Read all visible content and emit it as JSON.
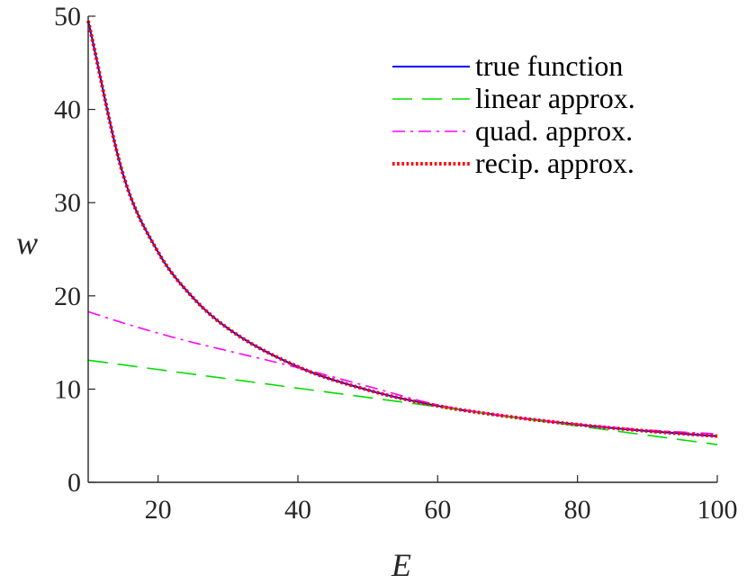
{
  "chart_data": {
    "type": "line",
    "title": "",
    "xlabel": "E",
    "ylabel": "w",
    "xlim": [
      10,
      100
    ],
    "ylim": [
      0,
      50
    ],
    "xticks": [
      20,
      40,
      60,
      80,
      100
    ],
    "yticks": [
      0,
      10,
      20,
      30,
      40,
      50
    ],
    "xtick_labels": [
      "20",
      "40",
      "60",
      "80",
      "100"
    ],
    "ytick_labels": [
      "0",
      "10",
      "20",
      "30",
      "40",
      "50"
    ],
    "grid": false,
    "legend_position": "top-right",
    "x_samples": [
      10,
      15,
      20,
      25,
      30,
      40,
      50,
      60,
      70,
      80,
      90,
      100
    ],
    "series": [
      {
        "name": "true function",
        "color": "#0000ff",
        "style": "solid",
        "values": [
          49.5,
          33.0,
          24.7,
          19.8,
          16.5,
          12.4,
          9.9,
          8.2,
          7.07,
          6.19,
          5.5,
          4.95
        ]
      },
      {
        "name": "linear approx.",
        "color": "#00dd00",
        "style": "dashed",
        "values": [
          13.1,
          12.6,
          12.1,
          11.6,
          11.1,
          10.1,
          9.1,
          8.1,
          7.05,
          6.05,
          5.05,
          4.05
        ]
      },
      {
        "name": "quad. approx.",
        "color": "#ff00ff",
        "style": "dashdot",
        "values": [
          18.3,
          17.1,
          16.0,
          15.0,
          14.1,
          12.3,
          10.3,
          8.3,
          7.1,
          6.25,
          5.6,
          5.2
        ]
      },
      {
        "name": "recip. approx.",
        "color": "#ff0000",
        "style": "dotted",
        "values": [
          49.5,
          33.0,
          24.7,
          19.8,
          16.5,
          12.4,
          9.9,
          8.2,
          7.07,
          6.19,
          5.5,
          4.95
        ]
      }
    ]
  }
}
